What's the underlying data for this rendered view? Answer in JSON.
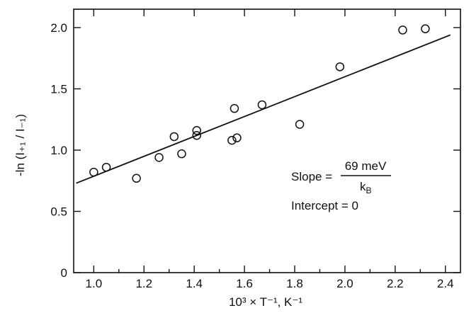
{
  "chart_data": {
    "type": "scatter",
    "title": "",
    "xlabel": "10³ × T⁻¹, K⁻¹",
    "ylabel": "-ln (I₊₁ / I₋₁)",
    "xlim": [
      0.92,
      2.46
    ],
    "ylim": [
      0,
      2.15
    ],
    "x_ticks": [
      1.0,
      1.2,
      1.4,
      1.6,
      1.8,
      2.0,
      2.2,
      2.4
    ],
    "x_tick_labels": [
      "1.0",
      "1.2",
      "1.4",
      "1.6",
      "1.8",
      "2.0",
      "2.2",
      "2.4"
    ],
    "y_ticks": [
      0,
      0.5,
      1.0,
      1.5,
      2.0
    ],
    "y_tick_labels": [
      "0",
      "0.5",
      "1.0",
      "1.5",
      "2.0"
    ],
    "grid": false,
    "series": [
      {
        "points": [
          {
            "x": 1.0,
            "y": 0.82
          },
          {
            "x": 1.05,
            "y": 0.86
          },
          {
            "x": 1.17,
            "y": 0.77
          },
          {
            "x": 1.26,
            "y": 0.94
          },
          {
            "x": 1.32,
            "y": 1.11
          },
          {
            "x": 1.35,
            "y": 0.97
          },
          {
            "x": 1.41,
            "y": 1.16
          },
          {
            "x": 1.41,
            "y": 1.12
          },
          {
            "x": 1.55,
            "y": 1.08
          },
          {
            "x": 1.56,
            "y": 1.34
          },
          {
            "x": 1.57,
            "y": 1.1
          },
          {
            "x": 1.67,
            "y": 1.37
          },
          {
            "x": 1.82,
            "y": 1.21
          },
          {
            "x": 1.98,
            "y": 1.68
          },
          {
            "x": 2.23,
            "y": 1.98
          },
          {
            "x": 2.32,
            "y": 1.99
          }
        ]
      }
    ],
    "fit_line": {
      "x": [
        0.93,
        2.42
      ],
      "y": [
        0.73,
        1.94
      ]
    },
    "annotations": {
      "slope_prefix": "Slope =",
      "slope_numerator": "69 meV",
      "slope_denominator": "k",
      "slope_denominator_sub": "B",
      "intercept": "Intercept = 0"
    }
  }
}
